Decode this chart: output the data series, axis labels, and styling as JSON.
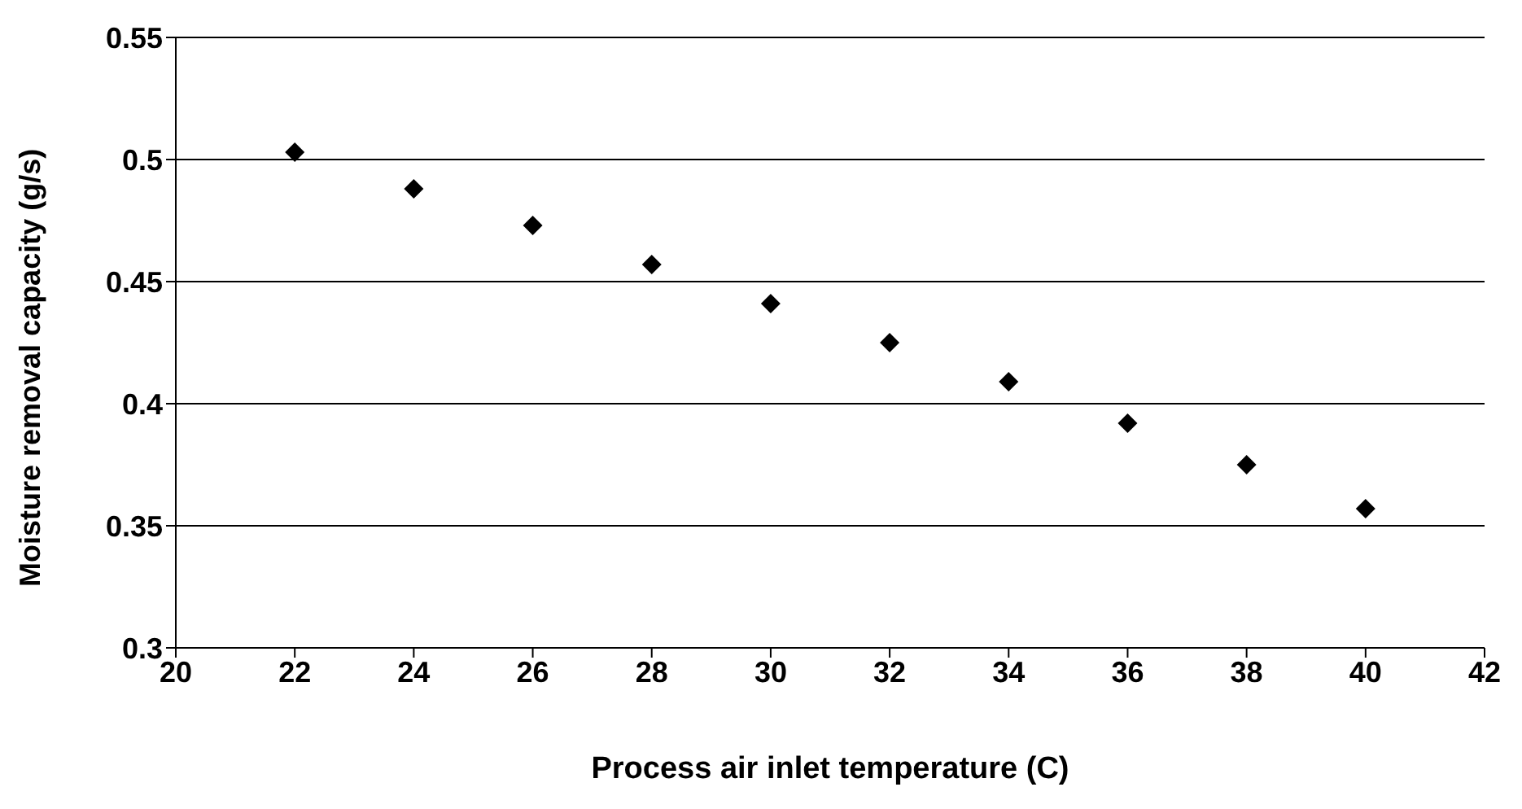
{
  "chart_data": {
    "type": "scatter",
    "xlabel": "Process air inlet temperature (C)",
    "ylabel": "Moisture removal capacity (g/s)",
    "x": [
      22,
      24,
      26,
      28,
      30,
      32,
      34,
      36,
      38,
      40
    ],
    "series": [
      {
        "color": "#000000",
        "values": [
          0.503,
          0.488,
          0.473,
          0.457,
          0.441,
          0.425,
          0.409,
          0.392,
          0.375,
          0.357
        ]
      }
    ],
    "xlim": [
      20,
      42
    ],
    "xticks": [
      20,
      22,
      24,
      26,
      28,
      30,
      32,
      34,
      36,
      38,
      40,
      42
    ],
    "ylim": [
      0.3,
      0.55
    ],
    "yticks": [
      0.3,
      0.35,
      0.4,
      0.45,
      0.5,
      0.55
    ],
    "grid": "y",
    "marker": "diamond",
    "legend": false
  }
}
